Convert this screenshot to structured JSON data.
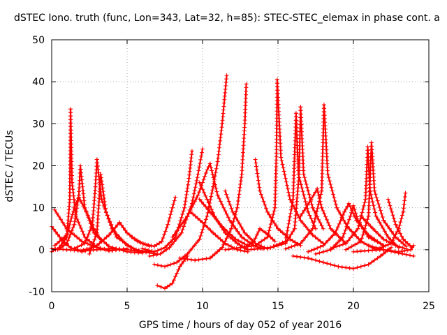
{
  "chart_data": {
    "type": "scatter",
    "title": "dSTEC Iono. truth (func, Lon=343, Lat=32, h=85): STEC-STEC_elemax in phase cont. a",
    "xlabel": "GPS time / hours of day 052 of year 2016",
    "ylabel": "dSTEC  / TECUs",
    "xlim": [
      0,
      25
    ],
    "ylim": [
      -10,
      50
    ],
    "xticks": [
      0,
      5,
      10,
      15,
      20,
      25
    ],
    "yticks": [
      -10,
      0,
      10,
      20,
      30,
      40,
      50
    ],
    "grid": true,
    "marker": "+",
    "color": "#ff0000",
    "series": [
      {
        "values": [
          [
            0.0,
            5.5
          ],
          [
            0.8,
            1.8
          ],
          [
            1.3,
            0.4
          ],
          [
            1.9,
            -0.2
          ],
          [
            2.5,
            0.2
          ],
          [
            3.0,
            1.0
          ]
        ]
      },
      {
        "values": [
          [
            0.2,
            9.5
          ],
          [
            1.0,
            5.0
          ],
          [
            2.0,
            2.0
          ],
          [
            3.0,
            0.5
          ],
          [
            4.0,
            -0.2
          ],
          [
            5.0,
            0.3
          ]
        ]
      },
      {
        "values": [
          [
            0.0,
            -0.5
          ],
          [
            0.5,
            0.5
          ],
          [
            1.0,
            3.0
          ],
          [
            1.2,
            12.0
          ],
          [
            1.25,
            33.5
          ]
        ]
      },
      {
        "values": [
          [
            1.25,
            33.5
          ],
          [
            1.35,
            16.0
          ],
          [
            1.6,
            8.0
          ],
          [
            2.2,
            3.0
          ],
          [
            3.0,
            0.6
          ],
          [
            3.8,
            -0.3
          ],
          [
            4.5,
            0.2
          ]
        ]
      },
      {
        "values": [
          [
            0.4,
            0.0
          ],
          [
            1.0,
            1.5
          ],
          [
            1.5,
            6.0
          ],
          [
            1.8,
            13.0
          ],
          [
            1.9,
            20.0
          ]
        ]
      },
      {
        "values": [
          [
            1.9,
            20.0
          ],
          [
            2.2,
            10.0
          ],
          [
            2.8,
            4.0
          ],
          [
            3.8,
            0.8
          ],
          [
            5.0,
            -0.5
          ],
          [
            6.0,
            -0.8
          ]
        ]
      },
      {
        "values": [
          [
            1.5,
            0.3
          ],
          [
            2.2,
            1.5
          ],
          [
            2.7,
            6.0
          ],
          [
            2.9,
            15.0
          ],
          [
            3.0,
            21.5
          ]
        ]
      },
      {
        "values": [
          [
            3.0,
            21.5
          ],
          [
            3.3,
            12.0
          ],
          [
            4.0,
            5.0
          ],
          [
            5.0,
            1.0
          ],
          [
            6.0,
            -0.6
          ]
        ]
      },
      {
        "values": [
          [
            2.5,
            -1.0
          ],
          [
            3.0,
            4.0
          ],
          [
            3.25,
            18.0
          ],
          [
            3.6,
            9.0
          ],
          [
            4.3,
            3.0
          ],
          [
            5.5,
            0.0
          ],
          [
            6.5,
            -0.5
          ]
        ]
      },
      {
        "values": [
          [
            0.2,
            1.0
          ],
          [
            1.0,
            3.5
          ],
          [
            1.5,
            10.0
          ],
          [
            1.8,
            12.5
          ],
          [
            2.3,
            9.0
          ],
          [
            2.8,
            5.0
          ],
          [
            3.3,
            2.0
          ]
        ]
      },
      {
        "values": [
          [
            2.0,
            -0.5
          ],
          [
            3.0,
            1.0
          ],
          [
            3.8,
            3.5
          ],
          [
            4.5,
            6.5
          ],
          [
            5.0,
            4.0
          ],
          [
            5.7,
            2.0
          ],
          [
            6.5,
            0.8
          ]
        ]
      },
      {
        "values": [
          [
            0.0,
            0.3
          ],
          [
            1.0,
            0.0
          ],
          [
            2.0,
            -0.3
          ],
          [
            3.0,
            0.0
          ],
          [
            4.0,
            0.3
          ],
          [
            5.0,
            0.0
          ],
          [
            6.0,
            -0.5
          ],
          [
            7.0,
            -1.0
          ]
        ]
      },
      {
        "values": [
          [
            5.3,
            3.0
          ],
          [
            6.0,
            1.5
          ],
          [
            6.8,
            0.8
          ],
          [
            7.3,
            2.0
          ],
          [
            7.7,
            6.0
          ],
          [
            8.0,
            10.0
          ],
          [
            8.2,
            12.5
          ]
        ]
      },
      {
        "values": [
          [
            6.0,
            0.3
          ],
          [
            6.8,
            -0.5
          ],
          [
            7.5,
            0.5
          ],
          [
            8.2,
            3.0
          ],
          [
            8.8,
            10.0
          ],
          [
            9.1,
            17.0
          ],
          [
            9.3,
            23.5
          ]
        ]
      },
      {
        "values": [
          [
            6.5,
            -1.5
          ],
          [
            7.2,
            -1.0
          ],
          [
            7.8,
            0.5
          ],
          [
            8.6,
            4.0
          ],
          [
            9.3,
            11.0
          ],
          [
            9.7,
            18.0
          ],
          [
            10.0,
            24.0
          ]
        ]
      },
      {
        "values": [
          [
            7.0,
            -8.5
          ],
          [
            7.5,
            -9.2
          ],
          [
            8.0,
            -8.0
          ],
          [
            8.5,
            -4.0
          ],
          [
            9.0,
            -1.5
          ]
        ]
      },
      {
        "values": [
          [
            6.8,
            -3.5
          ],
          [
            7.5,
            -4.0
          ],
          [
            8.3,
            -3.0
          ],
          [
            9.0,
            -1.0
          ],
          [
            9.8,
            2.5
          ],
          [
            10.3,
            8.0
          ],
          [
            10.7,
            15.0
          ],
          [
            11.0,
            21.0
          ],
          [
            11.3,
            30.0
          ],
          [
            11.6,
            41.5
          ]
        ]
      },
      {
        "values": [
          [
            8.5,
            -2.0
          ],
          [
            9.5,
            -2.5
          ],
          [
            10.5,
            -2.0
          ],
          [
            11.3,
            0.5
          ],
          [
            11.9,
            5.0
          ],
          [
            12.3,
            10.0
          ],
          [
            12.6,
            18.0
          ],
          [
            12.8,
            30.0
          ],
          [
            12.9,
            39.5
          ]
        ]
      },
      {
        "values": [
          [
            8.0,
            3.0
          ],
          [
            9.0,
            8.0
          ],
          [
            9.7,
            13.0
          ],
          [
            10.3,
            19.0
          ],
          [
            10.5,
            20.5
          ]
        ]
      },
      {
        "values": [
          [
            10.5,
            20.5
          ],
          [
            11.0,
            13.0
          ],
          [
            11.8,
            7.0
          ],
          [
            12.6,
            3.0
          ],
          [
            13.4,
            1.0
          ],
          [
            14.0,
            0.2
          ]
        ]
      },
      {
        "values": [
          [
            9.2,
            9.0
          ],
          [
            10.0,
            6.5
          ],
          [
            10.7,
            4.0
          ],
          [
            11.5,
            1.5
          ],
          [
            12.3,
            0.0
          ],
          [
            13.0,
            -0.5
          ]
        ]
      },
      {
        "values": [
          [
            9.8,
            16.0
          ],
          [
            10.3,
            12.0
          ],
          [
            10.8,
            8.0
          ],
          [
            11.5,
            4.0
          ],
          [
            12.3,
            1.5
          ],
          [
            13.0,
            0.0
          ]
        ]
      },
      {
        "values": [
          [
            9.8,
            12.0
          ],
          [
            10.5,
            9.0
          ],
          [
            11.3,
            5.5
          ],
          [
            12.2,
            2.5
          ],
          [
            13.0,
            1.0
          ]
        ]
      },
      {
        "values": [
          [
            11.5,
            14.0
          ],
          [
            12.0,
            9.0
          ],
          [
            12.8,
            4.0
          ],
          [
            13.5,
            1.5
          ],
          [
            14.3,
            0.2
          ]
        ]
      },
      {
        "values": [
          [
            12.8,
            0.5
          ],
          [
            13.4,
            2.0
          ],
          [
            13.8,
            5.0
          ],
          [
            14.2,
            4.0
          ],
          [
            14.8,
            2.0
          ]
        ]
      },
      {
        "values": [
          [
            11.5,
            0.0
          ],
          [
            12.5,
            0.5
          ],
          [
            13.5,
            1.0
          ],
          [
            14.3,
            3.0
          ],
          [
            14.8,
            10.0
          ],
          [
            14.9,
            23.0
          ],
          [
            14.95,
            40.5
          ]
        ]
      },
      {
        "values": [
          [
            14.95,
            40.5
          ],
          [
            15.2,
            22.0
          ],
          [
            15.8,
            12.0
          ],
          [
            16.5,
            7.0
          ],
          [
            17.3,
            3.5
          ],
          [
            18.0,
            1.5
          ]
        ]
      },
      {
        "values": [
          [
            13.5,
            21.5
          ],
          [
            13.8,
            14.0
          ],
          [
            14.3,
            9.0
          ],
          [
            15.0,
            5.0
          ],
          [
            15.8,
            2.5
          ],
          [
            16.5,
            1.0
          ]
        ]
      },
      {
        "values": [
          [
            13.0,
            0.0
          ],
          [
            14.5,
            0.5
          ],
          [
            15.5,
            2.0
          ],
          [
            16.0,
            12.0
          ],
          [
            16.2,
            32.5
          ],
          [
            16.35,
            18.0
          ],
          [
            17.0,
            9.0
          ],
          [
            17.5,
            5.0
          ]
        ]
      },
      {
        "values": [
          [
            14.5,
            0.5
          ],
          [
            15.5,
            1.5
          ],
          [
            16.1,
            5.0
          ],
          [
            16.4,
            18.0
          ],
          [
            16.5,
            34.0
          ],
          [
            16.7,
            18.0
          ],
          [
            17.3,
            10.0
          ],
          [
            18.0,
            5.0
          ]
        ]
      },
      {
        "values": [
          [
            16.5,
            8.0
          ],
          [
            17.2,
            12.0
          ],
          [
            17.6,
            14.5
          ],
          [
            17.9,
            10.0
          ],
          [
            18.5,
            5.0
          ],
          [
            19.5,
            1.5
          ]
        ]
      },
      {
        "values": [
          [
            15.5,
            0.2
          ],
          [
            16.5,
            1.5
          ],
          [
            17.3,
            5.0
          ],
          [
            17.9,
            14.0
          ],
          [
            18.05,
            34.5
          ]
        ]
      },
      {
        "values": [
          [
            18.05,
            34.5
          ],
          [
            18.3,
            18.0
          ],
          [
            18.9,
            10.0
          ],
          [
            19.6,
            5.5
          ],
          [
            20.5,
            2.0
          ],
          [
            21.5,
            0.0
          ]
        ]
      },
      {
        "values": [
          [
            17.5,
            -1.0
          ],
          [
            18.5,
            0.0
          ],
          [
            19.3,
            3.0
          ],
          [
            19.8,
            8.0
          ],
          [
            20.0,
            10.5
          ],
          [
            20.3,
            7.0
          ],
          [
            21.0,
            3.0
          ],
          [
            22.0,
            1.0
          ]
        ]
      },
      {
        "values": [
          [
            17.0,
            -0.5
          ],
          [
            18.0,
            1.0
          ],
          [
            18.8,
            4.0
          ],
          [
            19.4,
            9.0
          ],
          [
            19.7,
            11.0
          ],
          [
            20.2,
            7.0
          ],
          [
            21.0,
            3.5
          ],
          [
            22.0,
            1.0
          ]
        ]
      },
      {
        "values": [
          [
            16.0,
            -1.5
          ],
          [
            17.0,
            -2.0
          ],
          [
            18.0,
            -3.0
          ],
          [
            19.0,
            -4.0
          ],
          [
            20.0,
            -4.5
          ],
          [
            21.0,
            -3.5
          ],
          [
            21.8,
            -1.5
          ],
          [
            22.5,
            0.5
          ]
        ]
      },
      {
        "values": [
          [
            18.5,
            0.3
          ],
          [
            19.5,
            1.5
          ],
          [
            20.3,
            5.0
          ],
          [
            20.8,
            12.0
          ],
          [
            20.95,
            24.5
          ],
          [
            21.1,
            14.0
          ],
          [
            21.5,
            8.0
          ],
          [
            22.3,
            3.0
          ],
          [
            23.0,
            0.5
          ]
        ]
      },
      {
        "values": [
          [
            19.5,
            0.0
          ],
          [
            20.5,
            2.0
          ],
          [
            21.0,
            8.0
          ],
          [
            21.2,
            25.5
          ],
          [
            21.4,
            14.0
          ],
          [
            22.0,
            7.0
          ],
          [
            22.8,
            3.0
          ],
          [
            23.5,
            0.8
          ]
        ]
      },
      {
        "values": [
          [
            20.5,
            8.0
          ],
          [
            21.3,
            5.0
          ],
          [
            22.0,
            2.5
          ],
          [
            22.8,
            1.0
          ],
          [
            23.5,
            0.2
          ]
        ]
      },
      {
        "values": [
          [
            22.3,
            12.0
          ],
          [
            22.8,
            6.0
          ],
          [
            23.3,
            2.5
          ],
          [
            23.9,
            0.5
          ]
        ]
      },
      {
        "values": [
          [
            21.5,
            0.0
          ],
          [
            22.5,
            1.5
          ],
          [
            23.0,
            5.0
          ],
          [
            23.3,
            9.0
          ],
          [
            23.45,
            13.5
          ]
        ]
      },
      {
        "values": [
          [
            20.0,
            -0.5
          ],
          [
            21.0,
            -0.2
          ],
          [
            22.0,
            0.0
          ],
          [
            23.0,
            -0.8
          ],
          [
            24.0,
            -1.5
          ]
        ]
      },
      {
        "values": [
          [
            21.0,
            1.0
          ],
          [
            22.0,
            0.0
          ],
          [
            23.0,
            -0.5
          ],
          [
            23.8,
            0.0
          ],
          [
            24.0,
            1.0
          ]
        ]
      }
    ]
  }
}
